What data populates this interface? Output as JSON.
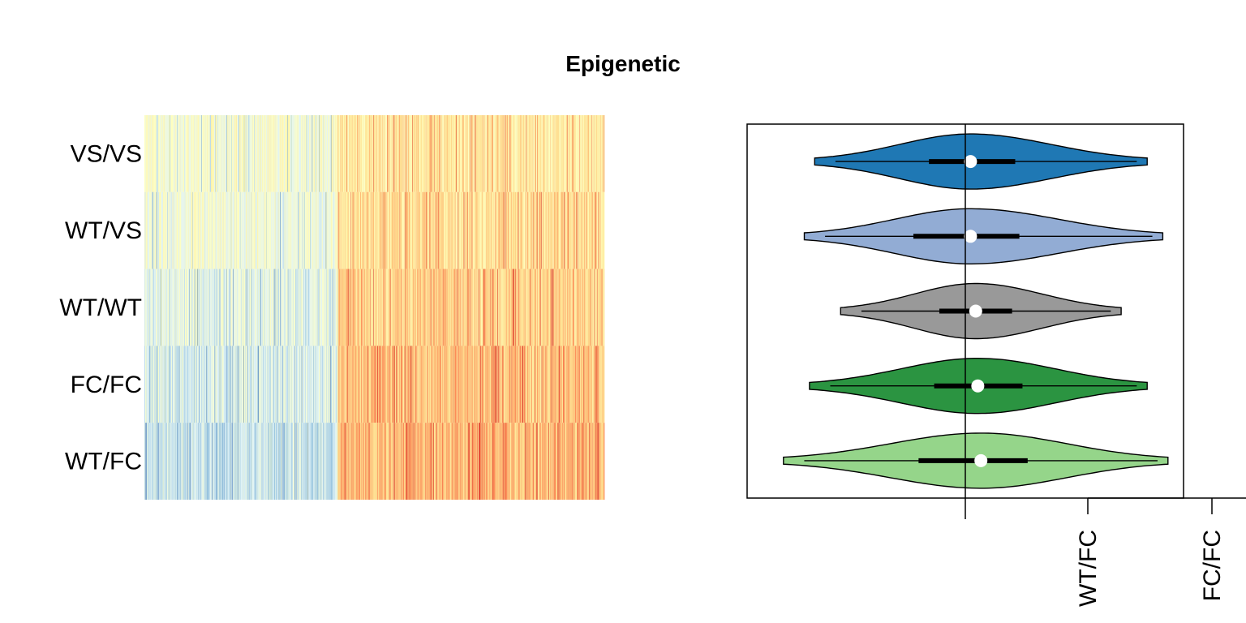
{
  "title": "Epigenetic",
  "chart_data": [
    {
      "type": "heatmap",
      "rows": [
        "VS/VS",
        "WT/VS",
        "WT/WT",
        "FC/FC",
        "WT/FC"
      ],
      "columns": 1100,
      "palette": [
        "#4575b4",
        "#91bfdb",
        "#e0f3f8",
        "#ffffbf",
        "#fee090",
        "#fc8d59",
        "#d73027"
      ],
      "row_left_block_level": [
        0.46,
        0.43,
        0.38,
        0.34,
        0.3
      ],
      "row_right_block_level": [
        0.6,
        0.64,
        0.68,
        0.72,
        0.74
      ],
      "block_split_fraction": 0.42
    },
    {
      "type": "violin",
      "groups": [
        {
          "name": "VS/VS",
          "color": "#1f78b4",
          "median": 0.05,
          "q1": -0.35,
          "q3": 0.48,
          "min": -1.45,
          "max": 1.75
        },
        {
          "name": "WT/VS",
          "color": "#92acd4",
          "median": 0.05,
          "q1": -0.5,
          "q3": 0.52,
          "min": -1.55,
          "max": 1.9
        },
        {
          "name": "WT/WT",
          "color": "#999999",
          "median": 0.1,
          "q1": -0.25,
          "q3": 0.45,
          "min": -1.2,
          "max": 1.5
        },
        {
          "name": "FC/FC",
          "color": "#2b9441",
          "median": 0.12,
          "q1": -0.3,
          "q3": 0.55,
          "min": -1.5,
          "max": 1.75
        },
        {
          "name": "WT/FC",
          "color": "#95d58a",
          "median": 0.15,
          "q1": -0.45,
          "q3": 0.6,
          "min": -1.75,
          "max": 1.95
        }
      ],
      "xlim": [
        -2.1,
        2.1
      ],
      "reference_line": 0,
      "bottom_tick_labels": [
        "WT/FC",
        "FC/FC"
      ]
    }
  ]
}
